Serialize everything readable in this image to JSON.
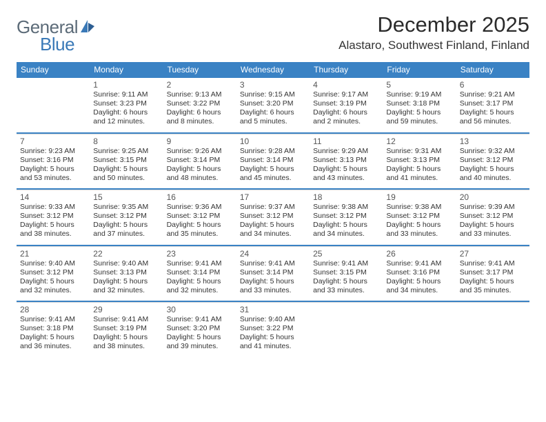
{
  "logo": {
    "text1": "General",
    "text2": "Blue"
  },
  "title": "December 2025",
  "location": "Alastaro, Southwest Finland, Finland",
  "colors": {
    "header_bg": "#3a82c4",
    "header_text": "#ffffff",
    "divider": "#3a82c4",
    "logo_gray": "#5c6b78",
    "logo_blue": "#3a79b7"
  },
  "day_labels": [
    "Sunday",
    "Monday",
    "Tuesday",
    "Wednesday",
    "Thursday",
    "Friday",
    "Saturday"
  ],
  "weeks": [
    [
      {
        "n": "",
        "sr": "",
        "ss": "",
        "dl": ""
      },
      {
        "n": "1",
        "sr": "Sunrise: 9:11 AM",
        "ss": "Sunset: 3:23 PM",
        "dl": "Daylight: 6 hours and 12 minutes."
      },
      {
        "n": "2",
        "sr": "Sunrise: 9:13 AM",
        "ss": "Sunset: 3:22 PM",
        "dl": "Daylight: 6 hours and 8 minutes."
      },
      {
        "n": "3",
        "sr": "Sunrise: 9:15 AM",
        "ss": "Sunset: 3:20 PM",
        "dl": "Daylight: 6 hours and 5 minutes."
      },
      {
        "n": "4",
        "sr": "Sunrise: 9:17 AM",
        "ss": "Sunset: 3:19 PM",
        "dl": "Daylight: 6 hours and 2 minutes."
      },
      {
        "n": "5",
        "sr": "Sunrise: 9:19 AM",
        "ss": "Sunset: 3:18 PM",
        "dl": "Daylight: 5 hours and 59 minutes."
      },
      {
        "n": "6",
        "sr": "Sunrise: 9:21 AM",
        "ss": "Sunset: 3:17 PM",
        "dl": "Daylight: 5 hours and 56 minutes."
      }
    ],
    [
      {
        "n": "7",
        "sr": "Sunrise: 9:23 AM",
        "ss": "Sunset: 3:16 PM",
        "dl": "Daylight: 5 hours and 53 minutes."
      },
      {
        "n": "8",
        "sr": "Sunrise: 9:25 AM",
        "ss": "Sunset: 3:15 PM",
        "dl": "Daylight: 5 hours and 50 minutes."
      },
      {
        "n": "9",
        "sr": "Sunrise: 9:26 AM",
        "ss": "Sunset: 3:14 PM",
        "dl": "Daylight: 5 hours and 48 minutes."
      },
      {
        "n": "10",
        "sr": "Sunrise: 9:28 AM",
        "ss": "Sunset: 3:14 PM",
        "dl": "Daylight: 5 hours and 45 minutes."
      },
      {
        "n": "11",
        "sr": "Sunrise: 9:29 AM",
        "ss": "Sunset: 3:13 PM",
        "dl": "Daylight: 5 hours and 43 minutes."
      },
      {
        "n": "12",
        "sr": "Sunrise: 9:31 AM",
        "ss": "Sunset: 3:13 PM",
        "dl": "Daylight: 5 hours and 41 minutes."
      },
      {
        "n": "13",
        "sr": "Sunrise: 9:32 AM",
        "ss": "Sunset: 3:12 PM",
        "dl": "Daylight: 5 hours and 40 minutes."
      }
    ],
    [
      {
        "n": "14",
        "sr": "Sunrise: 9:33 AM",
        "ss": "Sunset: 3:12 PM",
        "dl": "Daylight: 5 hours and 38 minutes."
      },
      {
        "n": "15",
        "sr": "Sunrise: 9:35 AM",
        "ss": "Sunset: 3:12 PM",
        "dl": "Daylight: 5 hours and 37 minutes."
      },
      {
        "n": "16",
        "sr": "Sunrise: 9:36 AM",
        "ss": "Sunset: 3:12 PM",
        "dl": "Daylight: 5 hours and 35 minutes."
      },
      {
        "n": "17",
        "sr": "Sunrise: 9:37 AM",
        "ss": "Sunset: 3:12 PM",
        "dl": "Daylight: 5 hours and 34 minutes."
      },
      {
        "n": "18",
        "sr": "Sunrise: 9:38 AM",
        "ss": "Sunset: 3:12 PM",
        "dl": "Daylight: 5 hours and 34 minutes."
      },
      {
        "n": "19",
        "sr": "Sunrise: 9:38 AM",
        "ss": "Sunset: 3:12 PM",
        "dl": "Daylight: 5 hours and 33 minutes."
      },
      {
        "n": "20",
        "sr": "Sunrise: 9:39 AM",
        "ss": "Sunset: 3:12 PM",
        "dl": "Daylight: 5 hours and 33 minutes."
      }
    ],
    [
      {
        "n": "21",
        "sr": "Sunrise: 9:40 AM",
        "ss": "Sunset: 3:12 PM",
        "dl": "Daylight: 5 hours and 32 minutes."
      },
      {
        "n": "22",
        "sr": "Sunrise: 9:40 AM",
        "ss": "Sunset: 3:13 PM",
        "dl": "Daylight: 5 hours and 32 minutes."
      },
      {
        "n": "23",
        "sr": "Sunrise: 9:41 AM",
        "ss": "Sunset: 3:14 PM",
        "dl": "Daylight: 5 hours and 32 minutes."
      },
      {
        "n": "24",
        "sr": "Sunrise: 9:41 AM",
        "ss": "Sunset: 3:14 PM",
        "dl": "Daylight: 5 hours and 33 minutes."
      },
      {
        "n": "25",
        "sr": "Sunrise: 9:41 AM",
        "ss": "Sunset: 3:15 PM",
        "dl": "Daylight: 5 hours and 33 minutes."
      },
      {
        "n": "26",
        "sr": "Sunrise: 9:41 AM",
        "ss": "Sunset: 3:16 PM",
        "dl": "Daylight: 5 hours and 34 minutes."
      },
      {
        "n": "27",
        "sr": "Sunrise: 9:41 AM",
        "ss": "Sunset: 3:17 PM",
        "dl": "Daylight: 5 hours and 35 minutes."
      }
    ],
    [
      {
        "n": "28",
        "sr": "Sunrise: 9:41 AM",
        "ss": "Sunset: 3:18 PM",
        "dl": "Daylight: 5 hours and 36 minutes."
      },
      {
        "n": "29",
        "sr": "Sunrise: 9:41 AM",
        "ss": "Sunset: 3:19 PM",
        "dl": "Daylight: 5 hours and 38 minutes."
      },
      {
        "n": "30",
        "sr": "Sunrise: 9:41 AM",
        "ss": "Sunset: 3:20 PM",
        "dl": "Daylight: 5 hours and 39 minutes."
      },
      {
        "n": "31",
        "sr": "Sunrise: 9:40 AM",
        "ss": "Sunset: 3:22 PM",
        "dl": "Daylight: 5 hours and 41 minutes."
      },
      {
        "n": "",
        "sr": "",
        "ss": "",
        "dl": ""
      },
      {
        "n": "",
        "sr": "",
        "ss": "",
        "dl": ""
      },
      {
        "n": "",
        "sr": "",
        "ss": "",
        "dl": ""
      }
    ]
  ]
}
